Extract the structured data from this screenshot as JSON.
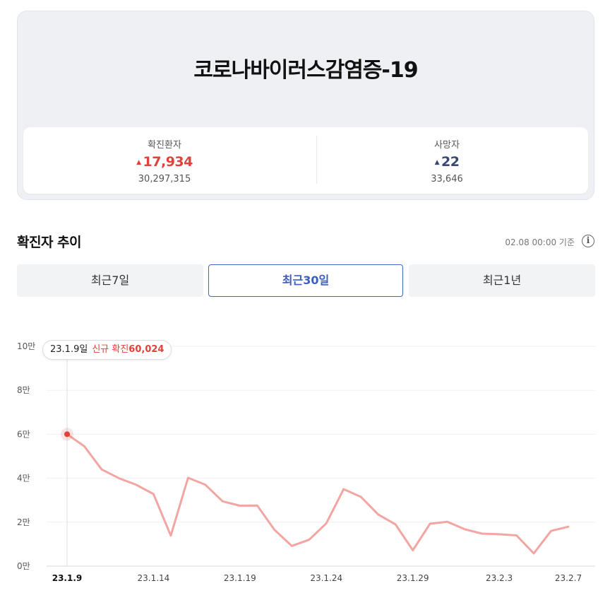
{
  "card": {
    "title": "코로나바이러스감염증-19",
    "confirmed": {
      "label": "확진환자",
      "delta": "17,934",
      "total": "30,297,315"
    },
    "deaths": {
      "label": "사망자",
      "delta": "22",
      "total": "33,646"
    }
  },
  "trend": {
    "title": "확진자 추이",
    "base_time": "02.08 00:00 기준",
    "info_icon": "info-icon",
    "tabs": [
      {
        "label": "최근7일",
        "active": false
      },
      {
        "label": "최근30일",
        "active": true
      },
      {
        "label": "최근1년",
        "active": false
      }
    ],
    "tooltip": {
      "date": "23.1.9일",
      "label": "신규 확진",
      "value": "60,024"
    }
  },
  "colors": {
    "accent_red": "#e0423b",
    "line": "#f3a5a2",
    "tab_active": "#3c5cc4"
  },
  "chart_data": {
    "type": "line",
    "ytick_labels": [
      "0만",
      "2만",
      "4만",
      "6만",
      "8만",
      "10만"
    ],
    "ylim": [
      0,
      100000
    ],
    "xtick_labels": [
      "23.1.9",
      "23.1.14",
      "23.1.19",
      "23.1.24",
      "23.1.29",
      "23.2.3",
      "23.2.7"
    ],
    "xtick_indices": [
      0,
      5,
      10,
      15,
      20,
      25,
      29
    ],
    "x": [
      "23.1.9",
      "23.1.10",
      "23.1.11",
      "23.1.12",
      "23.1.13",
      "23.1.14",
      "23.1.15",
      "23.1.16",
      "23.1.17",
      "23.1.18",
      "23.1.19",
      "23.1.20",
      "23.1.21",
      "23.1.22",
      "23.1.23",
      "23.1.24",
      "23.1.25",
      "23.1.26",
      "23.1.27",
      "23.1.28",
      "23.1.29",
      "23.1.30",
      "23.1.31",
      "23.2.1",
      "23.2.2",
      "23.2.3",
      "23.2.4",
      "23.2.5",
      "23.2.6",
      "23.2.7"
    ],
    "series": [
      {
        "values": [
          60024,
          54500,
          44000,
          40000,
          37000,
          32800,
          13900,
          40200,
          37000,
          29500,
          27500,
          27600,
          16500,
          9200,
          12000,
          19500,
          35000,
          31500,
          23500,
          19000,
          7200,
          19300,
          20200,
          16800,
          14800,
          14500,
          14000,
          5800,
          16000,
          17934
        ]
      }
    ],
    "highlight_index": 0,
    "grid": true
  }
}
